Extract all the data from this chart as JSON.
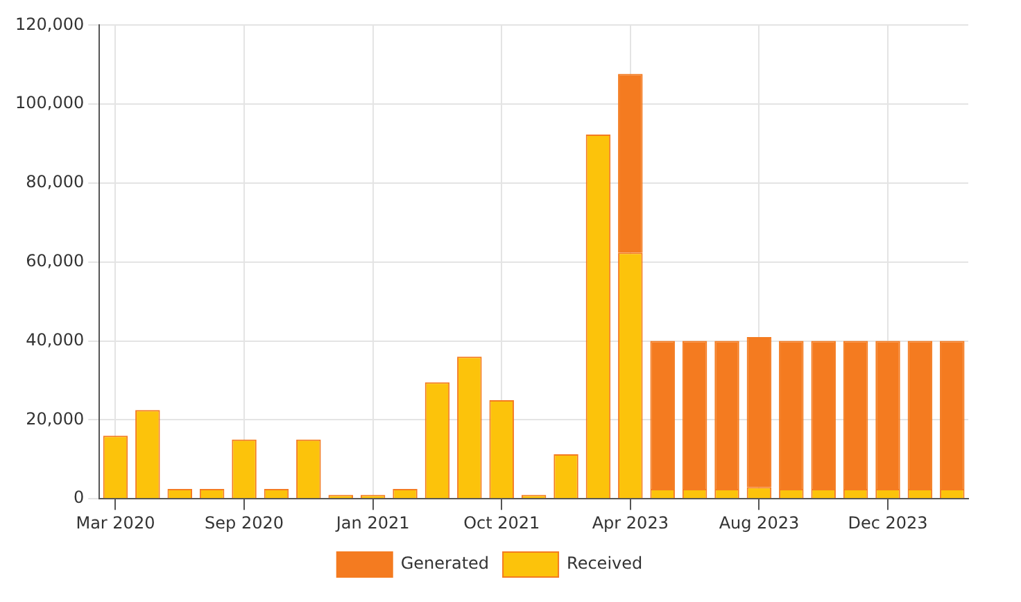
{
  "chart_data": {
    "type": "bar",
    "stacked": true,
    "grid": true,
    "legend": "bottom",
    "categories": [
      "Mar 2020",
      null,
      null,
      null,
      "Sep 2020",
      null,
      null,
      null,
      "Jan 2021",
      null,
      null,
      null,
      "Oct 2021",
      null,
      null,
      null,
      "Apr 2023",
      null,
      null,
      null,
      "Aug 2023",
      null,
      null,
      null,
      "Dec 2023",
      null,
      null
    ],
    "series": [
      {
        "name": "Received",
        "color": "#fcc30b",
        "values": [
          16000,
          22500,
          2500,
          2500,
          15000,
          2500,
          15000,
          1000,
          1000,
          2500,
          29500,
          36000,
          25000,
          1000,
          11300,
          92300,
          62400,
          2500,
          2500,
          2500,
          3000,
          2500,
          2500,
          2500,
          2500,
          2500,
          2500
        ]
      },
      {
        "name": "Generated",
        "color": "#f47b20",
        "values": [
          0,
          0,
          0,
          0,
          0,
          0,
          0,
          0,
          0,
          0,
          0,
          0,
          0,
          0,
          0,
          0,
          45300,
          37500,
          37500,
          37500,
          38000,
          37500,
          37500,
          37500,
          37500,
          37500,
          37500
        ]
      }
    ],
    "ylim": [
      0,
      120000
    ],
    "yticks": [
      0,
      {
        "value": 20000,
        "label": "20,000"
      },
      {
        "value": 40000,
        "label": "40,000"
      },
      {
        "value": 60000,
        "label": "60,000"
      },
      {
        "value": 80000,
        "label": "80,000"
      },
      {
        "value": 100000,
        "label": "100,000"
      },
      {
        "value": 120000,
        "label": "120,000"
      }
    ]
  }
}
